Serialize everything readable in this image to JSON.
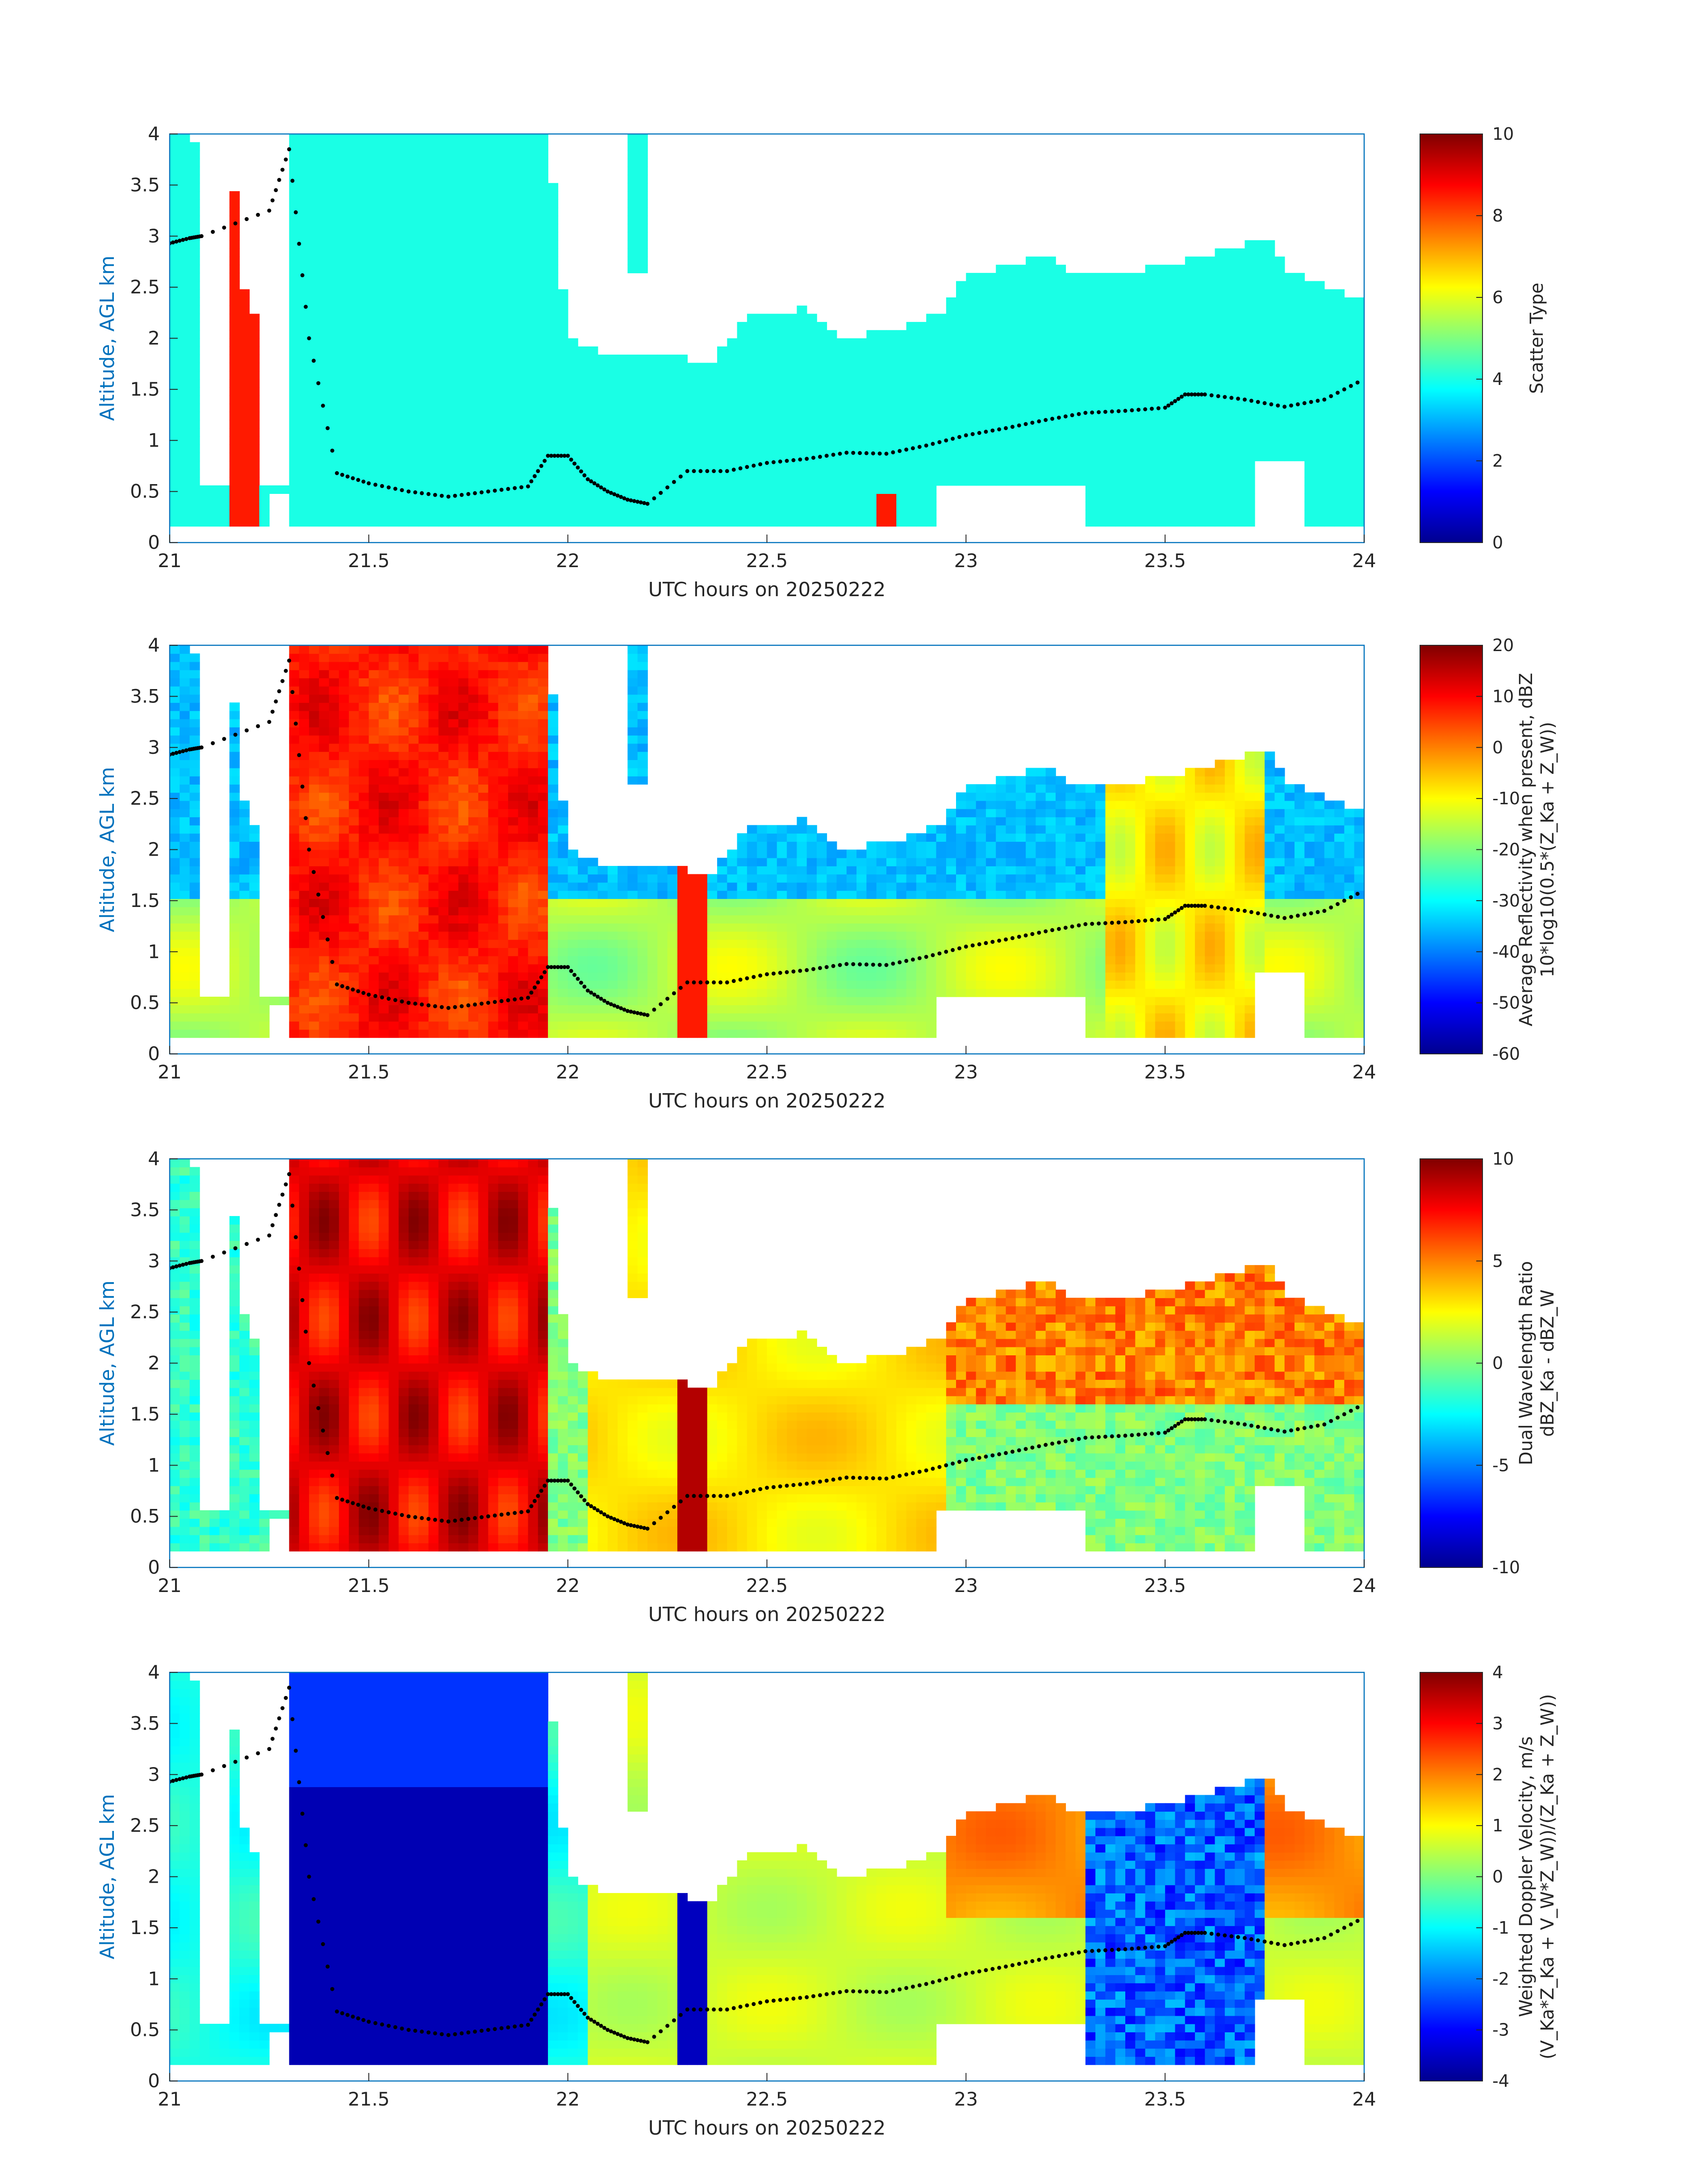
{
  "chart_data": [
    {
      "type": "heatmap",
      "xlabel": "UTC hours on 20250222",
      "ylabel": "Altitude, AGL km",
      "xlim": [
        21,
        24
      ],
      "ylim": [
        0,
        4
      ],
      "xticks": [
        "21",
        "21.5",
        "22",
        "22.5",
        "23",
        "23.5",
        "24"
      ],
      "yticks": [
        "0",
        "0.5",
        "1",
        "1.5",
        "2",
        "2.5",
        "3",
        "3.5",
        "4"
      ],
      "colorbar": {
        "label_lines": [
          "Scatter Type"
        ],
        "clim": [
          0,
          10
        ],
        "ticks": [
          "10",
          "8",
          "6",
          "4",
          "2",
          "0"
        ]
      },
      "colormap": "jet",
      "dominant_value": 4,
      "secondary_value": 8.5
    },
    {
      "type": "heatmap",
      "xlabel": "UTC hours on 20250222",
      "ylabel": "Altitude, AGL km",
      "xlim": [
        21,
        24
      ],
      "ylim": [
        0,
        4
      ],
      "xticks": [
        "21",
        "21.5",
        "22",
        "22.5",
        "23",
        "23.5",
        "24"
      ],
      "yticks": [
        "0",
        "0.5",
        "1",
        "1.5",
        "2",
        "2.5",
        "3",
        "3.5",
        "4"
      ],
      "colorbar": {
        "label_lines": [
          "Average Reflectivity when present, dBZ",
          "10*log10(0.5*(Z_Ka + Z_W))"
        ],
        "clim": [
          -60,
          20
        ],
        "ticks": [
          "20",
          "10",
          "0",
          "-10",
          "-20",
          "-30",
          "-40",
          "-50",
          "-60"
        ]
      },
      "colormap": "jet"
    },
    {
      "type": "heatmap",
      "xlabel": "UTC hours on 20250222",
      "ylabel": "Altitude, AGL km",
      "xlim": [
        21,
        24
      ],
      "ylim": [
        0,
        4
      ],
      "xticks": [
        "21",
        "21.5",
        "22",
        "22.5",
        "23",
        "23.5",
        "24"
      ],
      "yticks": [
        "0",
        "0.5",
        "1",
        "1.5",
        "2",
        "2.5",
        "3",
        "3.5",
        "4"
      ],
      "colorbar": {
        "label_lines": [
          "Dual Wavelength Ratio",
          "dBZ_Ka - dBZ_W"
        ],
        "clim": [
          -10,
          10
        ],
        "ticks": [
          "10",
          "5",
          "0",
          "-5",
          "-10"
        ]
      },
      "colormap": "jet"
    },
    {
      "type": "heatmap",
      "xlabel": "UTC hours on 20250222",
      "ylabel": "Altitude, AGL km",
      "xlim": [
        21,
        24
      ],
      "ylim": [
        0,
        4
      ],
      "xticks": [
        "21",
        "21.5",
        "22",
        "22.5",
        "23",
        "23.5",
        "24"
      ],
      "yticks": [
        "0",
        "0.5",
        "1",
        "1.5",
        "2",
        "2.5",
        "3",
        "3.5",
        "4"
      ],
      "colorbar": {
        "label_lines": [
          "Weighted Doppler Velocity, m/s",
          "(V_Ka*Z_Ka + V_W*Z_W))/(Z_Ka + Z_W))"
        ],
        "clim": [
          -4,
          4
        ],
        "ticks": [
          "4",
          "3",
          "2",
          "1",
          "0",
          "-1",
          "-2",
          "-3",
          "-4"
        ]
      },
      "colormap": "jet"
    }
  ],
  "cloud_base_trace": {
    "x": [
      21.0,
      21.05,
      21.08,
      21.25,
      21.3,
      21.35,
      21.42,
      21.5,
      21.6,
      21.7,
      21.8,
      21.9,
      21.95,
      22.0,
      22.05,
      22.1,
      22.15,
      22.2,
      22.3,
      22.4,
      22.5,
      22.6,
      22.7,
      22.8,
      22.9,
      23.0,
      23.1,
      23.2,
      23.3,
      23.4,
      23.5,
      23.55,
      23.6,
      23.7,
      23.8,
      23.9,
      24.0
    ],
    "y": [
      2.93,
      2.98,
      3.0,
      3.25,
      3.85,
      2.0,
      0.68,
      0.58,
      0.5,
      0.45,
      0.5,
      0.55,
      0.85,
      0.85,
      0.62,
      0.5,
      0.42,
      0.38,
      0.7,
      0.7,
      0.78,
      0.82,
      0.88,
      0.87,
      0.95,
      1.05,
      1.12,
      1.2,
      1.27,
      1.29,
      1.32,
      1.45,
      1.45,
      1.4,
      1.33,
      1.4,
      1.6
    ]
  }
}
